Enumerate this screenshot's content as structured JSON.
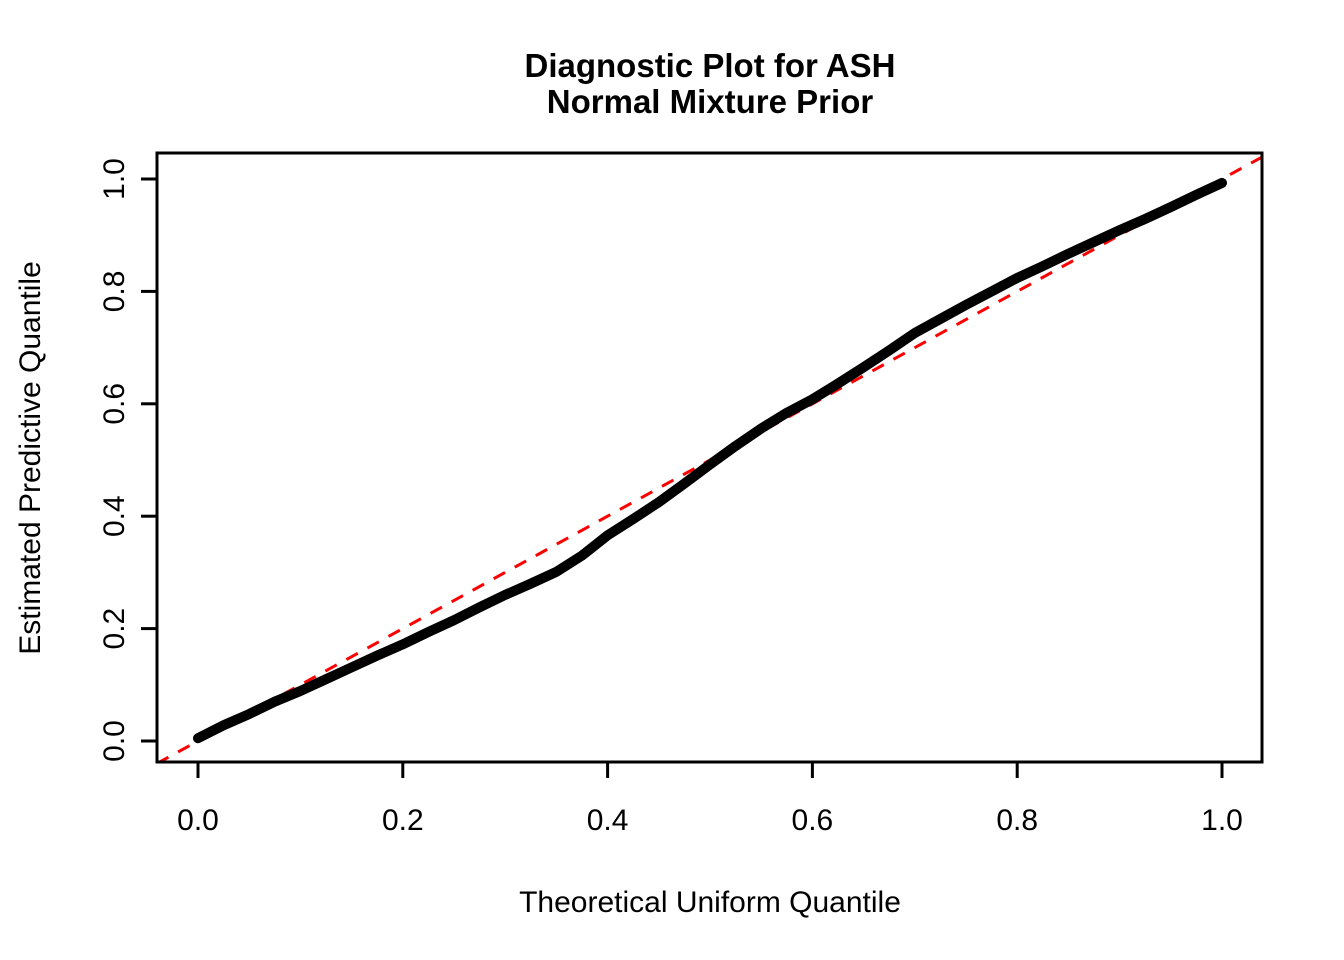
{
  "chart_data": {
    "type": "line",
    "description": "QQ diagnostic plot: dense black point-curve of estimated predictive quantiles vs theoretical uniform quantiles, with red dashed y=x reference line",
    "title_line1": "Diagnostic Plot for ASH",
    "title_line2": "Normal Mixture Prior",
    "xlabel": "Theoretical Uniform Quantile",
    "ylabel": "Estimated Predictive Quantile",
    "xlim": [
      -0.04,
      1.04
    ],
    "ylim": [
      -0.04,
      1.04
    ],
    "x_ticks": [
      0.0,
      0.2,
      0.4,
      0.6,
      0.8,
      1.0
    ],
    "x_tick_labels": [
      "0.0",
      "0.2",
      "0.4",
      "0.6",
      "0.8",
      "1.0"
    ],
    "y_ticks": [
      0.0,
      0.2,
      0.4,
      0.6,
      0.8,
      1.0
    ],
    "y_tick_labels": [
      "0.0",
      "0.2",
      "0.4",
      "0.6",
      "0.8",
      "1.0"
    ],
    "grid": "off",
    "legend": "none",
    "series": [
      {
        "name": "estimated-vs-theoretical-quantile-curve",
        "color": "#000000",
        "style": "thick point curve",
        "points": [
          [
            0.0,
            0.005
          ],
          [
            0.025,
            0.028
          ],
          [
            0.05,
            0.048
          ],
          [
            0.075,
            0.07
          ],
          [
            0.1,
            0.089
          ],
          [
            0.125,
            0.11
          ],
          [
            0.15,
            0.131
          ],
          [
            0.175,
            0.152
          ],
          [
            0.2,
            0.172
          ],
          [
            0.225,
            0.194
          ],
          [
            0.25,
            0.215
          ],
          [
            0.275,
            0.238
          ],
          [
            0.3,
            0.26
          ],
          [
            0.325,
            0.28
          ],
          [
            0.35,
            0.301
          ],
          [
            0.375,
            0.33
          ],
          [
            0.4,
            0.366
          ],
          [
            0.425,
            0.395
          ],
          [
            0.45,
            0.425
          ],
          [
            0.475,
            0.458
          ],
          [
            0.5,
            0.492
          ],
          [
            0.525,
            0.525
          ],
          [
            0.55,
            0.556
          ],
          [
            0.575,
            0.584
          ],
          [
            0.6,
            0.608
          ],
          [
            0.625,
            0.636
          ],
          [
            0.65,
            0.665
          ],
          [
            0.675,
            0.695
          ],
          [
            0.7,
            0.726
          ],
          [
            0.725,
            0.751
          ],
          [
            0.75,
            0.776
          ],
          [
            0.775,
            0.8
          ],
          [
            0.8,
            0.824
          ],
          [
            0.825,
            0.845
          ],
          [
            0.85,
            0.867
          ],
          [
            0.875,
            0.888
          ],
          [
            0.9,
            0.909
          ],
          [
            0.925,
            0.929
          ],
          [
            0.95,
            0.95
          ],
          [
            0.975,
            0.972
          ],
          [
            1.0,
            0.993
          ]
        ]
      }
    ],
    "reference_line": {
      "name": "identity-line",
      "intercept": 0,
      "slope": 1,
      "from": -0.04,
      "to": 1.04,
      "color": "#FF0000",
      "style": "dashed"
    },
    "colors": {
      "curve": "#000000",
      "reference": "#FF0000",
      "axis": "#000000",
      "background": "#FFFFFF"
    }
  }
}
